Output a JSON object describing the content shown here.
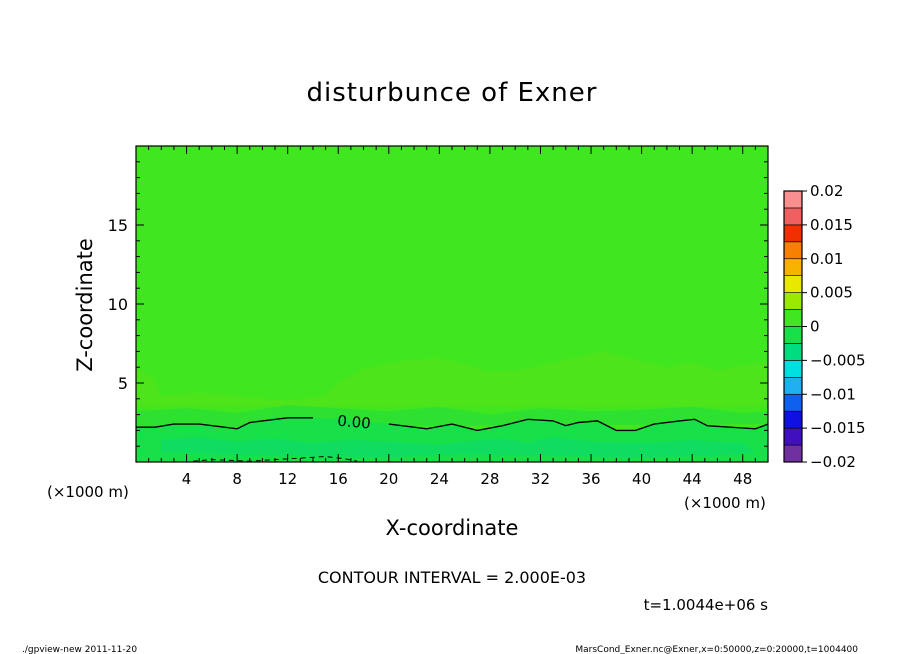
{
  "chart_data": {
    "type": "heatmap",
    "title": "disturbunce of Exner",
    "xlabel": "X-coordinate",
    "ylabel": "Z-coordinate",
    "x_unit_label": "(×1000 m)",
    "y_unit_label": "(×1000 m)",
    "xlim": [
      0,
      50
    ],
    "ylim": [
      0,
      20
    ],
    "x_ticks": [
      4,
      8,
      12,
      16,
      20,
      24,
      28,
      32,
      36,
      40,
      44,
      48
    ],
    "y_ticks": [
      5,
      10,
      15
    ],
    "contour_label": "0.00",
    "contour_interval_text": "CONTOUR INTERVAL = 2.000E-03",
    "time_text": "t=1.0044e+06 s",
    "footer_left": "./gpview-new   2011-11-20",
    "footer_right": "MarsCond_Exner.nc@Exner,x=0:50000,z=0:20000,t=1004400",
    "colorbar": {
      "ticks": [
        "0.02",
        "0.015",
        "0.01",
        "0.005",
        "0",
        "−0.005",
        "−0.01",
        "−0.015",
        "−0.02"
      ],
      "bins": [
        {
          "from": -0.02,
          "to": -0.0175,
          "color": "#7030a0"
        },
        {
          "from": -0.0175,
          "to": -0.015,
          "color": "#4010c0"
        },
        {
          "from": -0.015,
          "to": -0.0125,
          "color": "#1010e0"
        },
        {
          "from": -0.0125,
          "to": -0.01,
          "color": "#1060f0"
        },
        {
          "from": -0.01,
          "to": -0.0075,
          "color": "#1fb0f0"
        },
        {
          "from": -0.0075,
          "to": -0.005,
          "color": "#00e0e0"
        },
        {
          "from": -0.005,
          "to": -0.0025,
          "color": "#00dc80"
        },
        {
          "from": -0.0025,
          "to": 0,
          "color": "#18e048"
        },
        {
          "from": 0,
          "to": 0.0025,
          "color": "#40e620"
        },
        {
          "from": 0.0025,
          "to": 0.005,
          "color": "#9be800"
        },
        {
          "from": 0.005,
          "to": 0.0075,
          "color": "#e8e800"
        },
        {
          "from": 0.0075,
          "to": 0.01,
          "color": "#f6b400"
        },
        {
          "from": 0.01,
          "to": 0.0125,
          "color": "#f88000"
        },
        {
          "from": 0.0125,
          "to": 0.015,
          "color": "#f03000"
        },
        {
          "from": 0.015,
          "to": 0.0175,
          "color": "#f06060"
        },
        {
          "from": 0.0175,
          "to": 0.02,
          "color": "#f89090"
        }
      ]
    },
    "contour_zero_line": [
      [
        0,
        2.2
      ],
      [
        1.5,
        2.2
      ],
      [
        3,
        2.4
      ],
      [
        5,
        2.4
      ],
      [
        7,
        2.2
      ],
      [
        8,
        2.1
      ],
      [
        9,
        2.5
      ],
      [
        10,
        2.6
      ],
      [
        12,
        2.8
      ],
      [
        14,
        2.8
      ],
      [
        16,
        2.7
      ],
      [
        18,
        2.6
      ],
      [
        20,
        2.4
      ],
      [
        22,
        2.2
      ],
      [
        23,
        2.1
      ],
      [
        25,
        2.4
      ],
      [
        27,
        2.0
      ],
      [
        29,
        2.3
      ],
      [
        31,
        2.7
      ],
      [
        33,
        2.6
      ],
      [
        34,
        2.3
      ],
      [
        35,
        2.5
      ],
      [
        36.5,
        2.6
      ],
      [
        38,
        2.0
      ],
      [
        39.5,
        2.0
      ],
      [
        41,
        2.4
      ],
      [
        43,
        2.6
      ],
      [
        44.2,
        2.7
      ],
      [
        45.2,
        2.3
      ],
      [
        47,
        2.2
      ],
      [
        49,
        2.1
      ],
      [
        50,
        2.4
      ]
    ],
    "negative_dashed_line": [
      [
        4.5,
        0.05
      ],
      [
        6,
        0.15
      ],
      [
        7.5,
        0.1
      ],
      [
        9,
        0.05
      ],
      [
        11,
        0.15
      ],
      [
        13,
        0.25
      ],
      [
        15,
        0.35
      ],
      [
        16.5,
        0.2
      ],
      [
        17.5,
        0.05
      ]
    ],
    "regions": [
      {
        "value": 0.002,
        "color": "#40e620",
        "poly": [
          [
            0,
            20
          ],
          [
            50,
            20
          ],
          [
            50,
            0
          ],
          [
            0,
            0
          ]
        ]
      },
      {
        "value": 0.003,
        "color": "#4ee41c",
        "poly": [
          [
            0,
            6.0
          ],
          [
            1.5,
            5.2
          ],
          [
            2,
            4.2
          ],
          [
            5,
            4.4
          ],
          [
            9,
            4.1
          ],
          [
            12,
            3.9
          ],
          [
            15,
            4.2
          ],
          [
            16,
            5.0
          ],
          [
            18,
            5.9
          ],
          [
            21,
            6.4
          ],
          [
            24,
            6.6
          ],
          [
            26,
            6.2
          ],
          [
            28,
            5.7
          ],
          [
            31,
            5.9
          ],
          [
            34,
            6.5
          ],
          [
            37,
            7.0
          ],
          [
            39,
            6.6
          ],
          [
            42,
            6.0
          ],
          [
            44,
            6.3
          ],
          [
            46,
            5.8
          ],
          [
            48,
            6.1
          ],
          [
            50,
            6.3
          ],
          [
            50,
            3.5
          ],
          [
            0,
            3.5
          ]
        ]
      },
      {
        "value": 0.0,
        "color": "#2ee030",
        "poly": [
          [
            0,
            3.2
          ],
          [
            4,
            3.4
          ],
          [
            8,
            3.1
          ],
          [
            12,
            3.6
          ],
          [
            16,
            3.4
          ],
          [
            20,
            3.2
          ],
          [
            24,
            3.5
          ],
          [
            28,
            3.0
          ],
          [
            32,
            3.4
          ],
          [
            36,
            3.2
          ],
          [
            40,
            3.3
          ],
          [
            44,
            3.5
          ],
          [
            48,
            3.1
          ],
          [
            50,
            3.2
          ],
          [
            50,
            2.4
          ],
          [
            0,
            2.2
          ]
        ]
      },
      {
        "value": -0.001,
        "color": "#18e048",
        "poly": [
          [
            0,
            2.2
          ],
          [
            1.5,
            2.2
          ],
          [
            3,
            2.4
          ],
          [
            5,
            2.4
          ],
          [
            7,
            2.2
          ],
          [
            8,
            2.1
          ],
          [
            9,
            2.5
          ],
          [
            10,
            2.6
          ],
          [
            12,
            2.8
          ],
          [
            14,
            2.8
          ],
          [
            16,
            2.7
          ],
          [
            18,
            2.6
          ],
          [
            20,
            2.4
          ],
          [
            22,
            2.2
          ],
          [
            23,
            2.1
          ],
          [
            25,
            2.4
          ],
          [
            27,
            2.0
          ],
          [
            29,
            2.3
          ],
          [
            31,
            2.7
          ],
          [
            33,
            2.6
          ],
          [
            34,
            2.3
          ],
          [
            35,
            2.5
          ],
          [
            36.5,
            2.6
          ],
          [
            38,
            2.0
          ],
          [
            39.5,
            2.0
          ],
          [
            41,
            2.4
          ],
          [
            43,
            2.6
          ],
          [
            44.2,
            2.7
          ],
          [
            45.2,
            2.3
          ],
          [
            47,
            2.2
          ],
          [
            49,
            2.1
          ],
          [
            50,
            2.4
          ],
          [
            50,
            0
          ],
          [
            0,
            0
          ]
        ]
      },
      {
        "value": -0.003,
        "color": "#10dc60",
        "poly": [
          [
            2,
            1.4
          ],
          [
            5,
            1.6
          ],
          [
            8,
            1.3
          ],
          [
            11,
            1.5
          ],
          [
            14,
            1.2
          ],
          [
            17,
            1.4
          ],
          [
            20,
            1.3
          ],
          [
            24,
            1.1
          ],
          [
            26,
            1.3
          ],
          [
            29,
            1.5
          ],
          [
            31,
            1.2
          ],
          [
            33,
            1.6
          ],
          [
            36,
            1.3
          ],
          [
            40,
            1.2
          ],
          [
            44,
            1.4
          ],
          [
            48,
            1.2
          ],
          [
            49,
            0.6
          ],
          [
            46,
            0.4
          ],
          [
            40,
            0.3
          ],
          [
            32,
            0.4
          ],
          [
            26,
            0.5
          ],
          [
            20,
            0.3
          ],
          [
            12,
            0.4
          ],
          [
            6,
            0.5
          ],
          [
            2,
            0.6
          ]
        ]
      }
    ]
  }
}
